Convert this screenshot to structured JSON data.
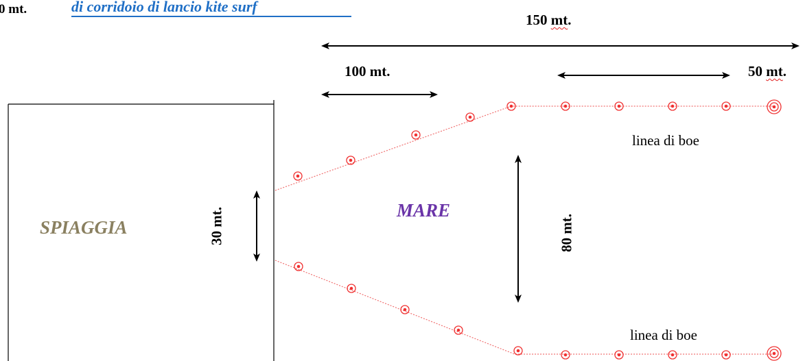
{
  "header": {
    "corner_label": "0 mt.",
    "subtitle": "di corridoio di lancio kite surf"
  },
  "dimensions": {
    "total": "150 mt.",
    "first_segment": "100 mt.",
    "last_segment": "50 mt.",
    "shore_opening": "30 mt.",
    "corridor_width": "80 mt."
  },
  "areas": {
    "beach": "SPIAGGIA",
    "sea": "MARE"
  },
  "buoy_lines": {
    "top": "linea di boe",
    "bottom": "linea di boe"
  },
  "colors": {
    "buoy": "#f03030",
    "subtitle": "#1f6fc6",
    "beach_text": "#8a8060",
    "sea_text": "#6a34a8"
  }
}
